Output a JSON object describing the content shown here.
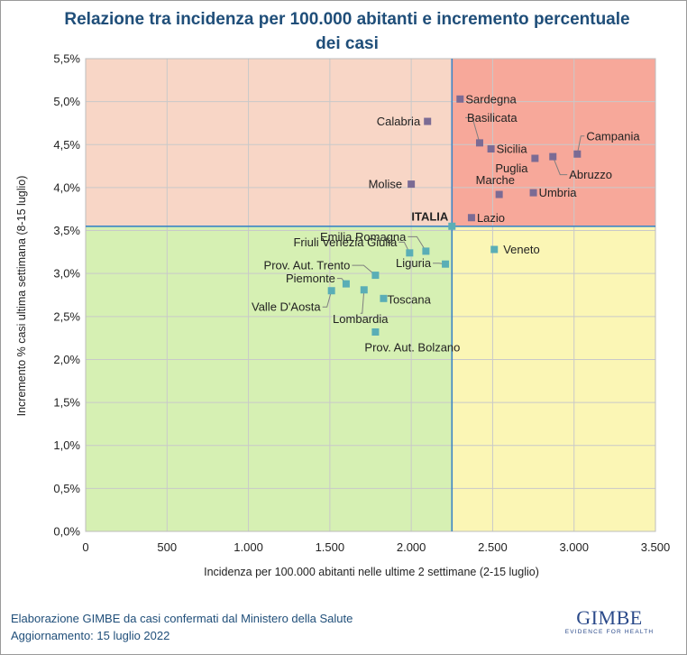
{
  "title": "Relazione tra incidenza per 100.000 abitanti e incremento percentuale dei casi",
  "footer": {
    "line1": "Elaborazione GIMBE da casi confermati dal Ministero della Salute",
    "line2": "Aggiornamento: 15 luglio 2022"
  },
  "logo": {
    "name": "GIMBE",
    "tagline": "EVIDENCE FOR HEALTH"
  },
  "colors": {
    "q_top_left": "#f8d6c6",
    "q_top_right": "#f7a89a",
    "q_bottom_left": "#d6f0b3",
    "q_bottom_right": "#fbf6b5",
    "marker_top": "#7b6b94",
    "marker_bottom": "#5aaeb6",
    "reference_line": "#3d85c6",
    "title": "#1f4e79"
  },
  "chart_data": {
    "type": "scatter",
    "title": "Relazione tra incidenza per 100.000 abitanti e incremento percentuale dei casi",
    "xlabel": "Incidenza per 100.000 abitanti nelle ultime 2 settimane (2-15 luglio)",
    "ylabel": "Incremento % casi ultima settimana (8-15 luglio)",
    "xlim": [
      0,
      3500
    ],
    "ylim": [
      0,
      5.5
    ],
    "xticks": [
      0,
      500,
      1000,
      1500,
      2000,
      2500,
      3000,
      3500
    ],
    "xtick_labels": [
      "0",
      "500",
      "1.000",
      "1.500",
      "2.000",
      "2.500",
      "3.000",
      "3.500"
    ],
    "yticks": [
      0,
      0.5,
      1,
      1.5,
      2,
      2.5,
      3,
      3.5,
      4,
      4.5,
      5,
      5.5
    ],
    "ytick_labels": [
      "0,0%",
      "0,5%",
      "1,0%",
      "1,5%",
      "2,0%",
      "2,5%",
      "3,0%",
      "3,5%",
      "4,0%",
      "4,5%",
      "5,0%",
      "5,5%"
    ],
    "grid": true,
    "reference": {
      "label": "ITALIA",
      "x": 2250,
      "y": 3.55
    },
    "points": [
      {
        "label": "Sardegna",
        "x": 2300,
        "y": 5.03
      },
      {
        "label": "Calabria",
        "x": 2100,
        "y": 4.77
      },
      {
        "label": "Basilicata",
        "x": 2420,
        "y": 4.52
      },
      {
        "label": "Sicilia",
        "x": 2490,
        "y": 4.45
      },
      {
        "label": "Campania",
        "x": 3020,
        "y": 4.39
      },
      {
        "label": "Puglia",
        "x": 2760,
        "y": 4.34
      },
      {
        "label": "Abruzzo",
        "x": 2870,
        "y": 4.36
      },
      {
        "label": "Molise",
        "x": 2000,
        "y": 4.04
      },
      {
        "label": "Marche",
        "x": 2540,
        "y": 3.92
      },
      {
        "label": "Umbria",
        "x": 2750,
        "y": 3.94
      },
      {
        "label": "Lazio",
        "x": 2370,
        "y": 3.65
      },
      {
        "label": "Emilia Romagna",
        "x": 2090,
        "y": 3.26
      },
      {
        "label": "Friuli Venezia Giulia",
        "x": 1990,
        "y": 3.24
      },
      {
        "label": "Veneto",
        "x": 2510,
        "y": 3.28
      },
      {
        "label": "Liguria",
        "x": 2210,
        "y": 3.11
      },
      {
        "label": "Prov. Aut. Trento",
        "x": 1780,
        "y": 2.98
      },
      {
        "label": "Piemonte",
        "x": 1600,
        "y": 2.88
      },
      {
        "label": "Valle D'Aosta",
        "x": 1510,
        "y": 2.8
      },
      {
        "label": "Lombardia",
        "x": 1710,
        "y": 2.81
      },
      {
        "label": "Toscana",
        "x": 1830,
        "y": 2.71
      },
      {
        "label": "Prov. Aut. Bolzano",
        "x": 1780,
        "y": 2.32
      }
    ]
  }
}
